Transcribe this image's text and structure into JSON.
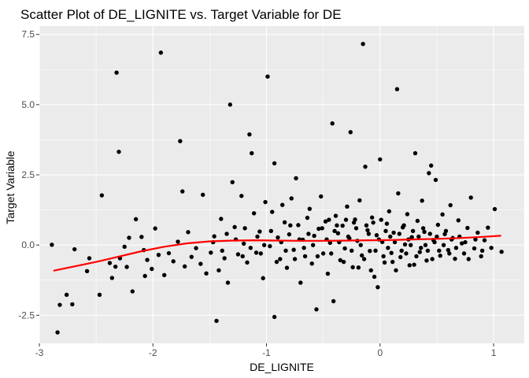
{
  "chart_data": {
    "type": "scatter",
    "title": "Scatter Plot of DE_LIGNITE vs. Target Variable for DE",
    "xlabel": "DE_LIGNITE",
    "ylabel": "Target Variable",
    "xlim": [
      -3.0,
      1.27
    ],
    "ylim": [
      -3.5,
      7.8
    ],
    "xticks": [
      {
        "value": -3,
        "label": "-3"
      },
      {
        "value": -2,
        "label": "-2"
      },
      {
        "value": -1,
        "label": "-1"
      },
      {
        "value": 0,
        "label": "0"
      },
      {
        "value": 1,
        "label": "1"
      }
    ],
    "yticks": [
      {
        "value": -2.5,
        "label": "-2.5"
      },
      {
        "value": 0.0,
        "label": "0.0"
      },
      {
        "value": 2.5,
        "label": "2.5"
      },
      {
        "value": 5.0,
        "label": "5.0"
      },
      {
        "value": 7.5,
        "label": "7.5"
      }
    ],
    "grid": true,
    "background": "#ebebeb",
    "point_color": "#000000",
    "trend_color": "#ff0000",
    "points": [
      [
        -2.89,
        0.01
      ],
      [
        -2.84,
        -3.11
      ],
      [
        -2.82,
        -2.13
      ],
      [
        -2.76,
        -1.77
      ],
      [
        -2.71,
        -2.11
      ],
      [
        -2.69,
        -0.15
      ],
      [
        -2.58,
        -0.93
      ],
      [
        -2.56,
        -0.47
      ],
      [
        -2.47,
        -1.77
      ],
      [
        -2.45,
        1.77
      ],
      [
        -2.38,
        -0.64
      ],
      [
        -2.36,
        -1.17
      ],
      [
        -2.33,
        -0.77
      ],
      [
        -2.32,
        6.14
      ],
      [
        -2.3,
        3.32
      ],
      [
        -2.29,
        -0.47
      ],
      [
        -2.25,
        -0.06
      ],
      [
        -2.23,
        -0.78
      ],
      [
        -2.21,
        0.26
      ],
      [
        -2.18,
        -1.65
      ],
      [
        -2.15,
        0.92
      ],
      [
        -2.1,
        0.29
      ],
      [
        -2.08,
        -0.18
      ],
      [
        -2.07,
        -1.1
      ],
      [
        -2.05,
        -0.53
      ],
      [
        -2.01,
        -0.85
      ],
      [
        -1.98,
        0.59
      ],
      [
        -1.95,
        -0.35
      ],
      [
        -1.93,
        6.85
      ],
      [
        -1.9,
        -1.07
      ],
      [
        -1.86,
        -0.29
      ],
      [
        -1.82,
        -0.58
      ],
      [
        -1.78,
        0.12
      ],
      [
        -1.76,
        3.7
      ],
      [
        -1.74,
        1.91
      ],
      [
        -1.72,
        -0.76
      ],
      [
        -1.69,
        0.46
      ],
      [
        -1.66,
        -0.42
      ],
      [
        -1.62,
        -0.11
      ],
      [
        -1.58,
        -0.67
      ],
      [
        -1.56,
        1.79
      ],
      [
        -1.53,
        -1.01
      ],
      [
        -1.49,
        -0.27
      ],
      [
        -1.46,
        0.31
      ],
      [
        -1.44,
        -2.7
      ],
      [
        -1.42,
        -0.9
      ],
      [
        -1.4,
        0.93
      ],
      [
        -1.37,
        -0.47
      ],
      [
        -1.34,
        -1.34
      ],
      [
        -1.32,
        5.0
      ],
      [
        -1.3,
        2.24
      ],
      [
        -1.28,
        0.64
      ],
      [
        -1.25,
        -0.33
      ],
      [
        -1.22,
        1.75
      ],
      [
        -1.2,
        0.05
      ],
      [
        -1.17,
        -0.62
      ],
      [
        -1.15,
        3.94
      ],
      [
        -1.13,
        3.27
      ],
      [
        -1.11,
        1.13
      ],
      [
        -1.09,
        -0.27
      ],
      [
        -1.06,
        0.48
      ],
      [
        -1.03,
        -1.18
      ],
      [
        -1.01,
        1.53
      ],
      [
        -0.99,
        6.0
      ],
      [
        -0.97,
        -0.04
      ],
      [
        -0.95,
        1.18
      ],
      [
        -0.93,
        2.91
      ],
      [
        -0.93,
        -2.56
      ],
      [
        -0.9,
        0.27
      ],
      [
        -0.88,
        -0.5
      ],
      [
        -0.86,
        1.43
      ],
      [
        -0.84,
        0.81
      ],
      [
        -0.82,
        -0.81
      ],
      [
        -0.8,
        0.38
      ],
      [
        -0.78,
        1.66
      ],
      [
        -0.76,
        -0.17
      ],
      [
        -0.74,
        2.38
      ],
      [
        -0.72,
        0.71
      ],
      [
        -0.7,
        -1.34
      ],
      [
        -0.68,
        0.19
      ],
      [
        -0.66,
        -0.4
      ],
      [
        -0.64,
        0.97
      ],
      [
        -0.62,
        1.29
      ],
      [
        -0.6,
        -0.66
      ],
      [
        -0.58,
        0.33
      ],
      [
        -0.56,
        -2.29
      ],
      [
        -0.54,
        0.58
      ],
      [
        -0.52,
        1.73
      ],
      [
        -0.5,
        -0.3
      ],
      [
        -0.48,
        0.84
      ],
      [
        -0.46,
        -1.02
      ],
      [
        -0.44,
        0.08
      ],
      [
        -0.42,
        4.33
      ],
      [
        -0.41,
        -2.0
      ],
      [
        -0.39,
        1.04
      ],
      [
        -0.37,
        0.42
      ],
      [
        -0.35,
        -0.54
      ],
      [
        -0.33,
        0.69
      ],
      [
        -0.31,
        -0.12
      ],
      [
        -0.29,
        1.37
      ],
      [
        -0.27,
        0.24
      ],
      [
        -0.26,
        4.02
      ],
      [
        -0.24,
        -0.79
      ],
      [
        -0.22,
        0.91
      ],
      [
        -0.2,
        0.15
      ],
      [
        -0.18,
        1.59
      ],
      [
        -0.16,
        -0.37
      ],
      [
        -0.15,
        7.16
      ],
      [
        -0.13,
        2.79
      ],
      [
        -0.11,
        0.53
      ],
      [
        -0.09,
        -0.21
      ],
      [
        -0.07,
        0.98
      ],
      [
        -0.05,
        -1.13
      ],
      [
        -0.03,
        0.35
      ],
      [
        -0.02,
        -1.5
      ],
      [
        0.0,
        3.05
      ],
      [
        0.02,
        0.11
      ],
      [
        0.04,
        -0.62
      ],
      [
        0.06,
        0.76
      ],
      [
        0.08,
        1.2
      ],
      [
        0.1,
        -0.28
      ],
      [
        0.12,
        0.44
      ],
      [
        0.15,
        5.55
      ],
      [
        0.16,
        1.84
      ],
      [
        0.18,
        -0.43
      ],
      [
        0.2,
        0.63
      ],
      [
        0.22,
        0.02
      ],
      [
        0.24,
        1.1
      ],
      [
        0.26,
        -0.72
      ],
      [
        0.28,
        0.28
      ],
      [
        0.31,
        3.27
      ],
      [
        0.33,
        0.86
      ],
      [
        0.35,
        -0.25
      ],
      [
        0.37,
        1.58
      ],
      [
        0.39,
        0.47
      ],
      [
        0.41,
        -0.55
      ],
      [
        0.43,
        2.56
      ],
      [
        0.45,
        2.83
      ],
      [
        0.47,
        0.18
      ],
      [
        0.49,
        2.32
      ],
      [
        0.51,
        0.72
      ],
      [
        0.53,
        -0.38
      ],
      [
        0.55,
        1.09
      ],
      [
        0.57,
        0.39
      ],
      [
        0.6,
        -0.18
      ],
      [
        0.62,
        1.42
      ],
      [
        0.64,
        0.25
      ],
      [
        0.66,
        -0.49
      ],
      [
        0.69,
        0.88
      ],
      [
        0.72,
        0.06
      ],
      [
        0.74,
        -0.3
      ],
      [
        0.77,
        0.61
      ],
      [
        0.8,
        1.69
      ],
      [
        0.83,
        -0.12
      ],
      [
        0.86,
        0.44
      ],
      [
        0.89,
        -0.4
      ],
      [
        0.92,
        0.17
      ],
      [
        0.95,
        0.62
      ],
      [
        0.98,
        -0.1
      ],
      [
        1.01,
        1.28
      ],
      [
        1.07,
        -0.24
      ],
      [
        -1.47,
        0.1
      ],
      [
        -1.39,
        -0.2
      ],
      [
        -1.35,
        0.4
      ],
      [
        -1.27,
        0.2
      ],
      [
        -1.21,
        -0.4
      ],
      [
        -1.19,
        0.6
      ],
      [
        -1.14,
        -0.1
      ],
      [
        -1.08,
        0.3
      ],
      [
        -1.05,
        -0.3
      ],
      [
        -1.02,
        0.0
      ],
      [
        -0.96,
        0.5
      ],
      [
        -0.91,
        -0.6
      ],
      [
        -0.87,
        0.1
      ],
      [
        -0.83,
        -0.2
      ],
      [
        -0.79,
        0.7
      ],
      [
        -0.75,
        -0.5
      ],
      [
        -0.71,
        0.2
      ],
      [
        -0.67,
        -0.1
      ],
      [
        -0.63,
        0.4
      ],
      [
        -0.59,
        0.0
      ],
      [
        -0.55,
        -0.4
      ],
      [
        -0.51,
        0.6
      ],
      [
        -0.47,
        0.2
      ],
      [
        -0.43,
        -0.3
      ],
      [
        -0.4,
        0.5
      ],
      [
        -0.36,
        0.1
      ],
      [
        -0.32,
        -0.6
      ],
      [
        -0.28,
        0.3
      ],
      [
        -0.25,
        -0.2
      ],
      [
        -0.21,
        0.6
      ],
      [
        -0.17,
        0.0
      ],
      [
        -0.14,
        -0.5
      ],
      [
        -0.1,
        0.4
      ],
      [
        -0.06,
        0.8
      ],
      [
        -0.04,
        -0.2
      ],
      [
        -0.01,
        0.2
      ],
      [
        0.03,
        -0.4
      ],
      [
        0.05,
        0.5
      ],
      [
        0.07,
        -0.1
      ],
      [
        0.09,
        0.3
      ],
      [
        0.11,
        -0.6
      ],
      [
        0.13,
        0.1
      ],
      [
        0.17,
        0.4
      ],
      [
        0.19,
        -0.2
      ],
      [
        0.21,
        0.7
      ],
      [
        0.23,
        -0.3
      ],
      [
        0.25,
        0.2
      ],
      [
        0.27,
        0.0
      ],
      [
        0.29,
        0.5
      ],
      [
        0.32,
        -0.4
      ],
      [
        0.34,
        0.3
      ],
      [
        0.36,
        -0.1
      ],
      [
        0.38,
        0.6
      ],
      [
        0.4,
        0.0
      ],
      [
        0.42,
        -0.2
      ],
      [
        0.44,
        0.4
      ],
      [
        0.46,
        -0.5
      ],
      [
        0.48,
        0.1
      ],
      [
        0.5,
        0.3
      ],
      [
        0.52,
        -0.2
      ],
      [
        0.56,
        0.0
      ],
      [
        0.58,
        0.5
      ],
      [
        0.61,
        -0.3
      ],
      [
        0.63,
        0.2
      ],
      [
        0.67,
        -0.1
      ],
      [
        0.7,
        0.3
      ],
      [
        0.75,
        0.1
      ],
      [
        0.78,
        -0.5
      ],
      [
        0.84,
        0.2
      ],
      [
        0.9,
        -0.2
      ],
      [
        -0.45,
        0.9
      ],
      [
        -0.38,
        0.7
      ],
      [
        -0.3,
        0.9
      ],
      [
        -0.23,
        0.8
      ],
      [
        -0.19,
        -0.8
      ],
      [
        -0.12,
        0.7
      ],
      [
        -0.08,
        -0.9
      ],
      [
        0.01,
        0.9
      ],
      [
        0.14,
        -0.9
      ],
      [
        0.3,
        -0.7
      ]
    ],
    "trend": [
      [
        -2.87,
        -0.91
      ],
      [
        -2.7,
        -0.77
      ],
      [
        -2.5,
        -0.6
      ],
      [
        -2.3,
        -0.41
      ],
      [
        -2.1,
        -0.22
      ],
      [
        -1.9,
        -0.06
      ],
      [
        -1.7,
        0.06
      ],
      [
        -1.5,
        0.13
      ],
      [
        -1.3,
        0.16
      ],
      [
        -1.1,
        0.17
      ],
      [
        -0.9,
        0.16
      ],
      [
        -0.7,
        0.15
      ],
      [
        -0.5,
        0.15
      ],
      [
        -0.3,
        0.16
      ],
      [
        -0.1,
        0.17
      ],
      [
        0.1,
        0.18
      ],
      [
        0.3,
        0.2
      ],
      [
        0.5,
        0.22
      ],
      [
        0.7,
        0.25
      ],
      [
        0.9,
        0.29
      ],
      [
        1.06,
        0.33
      ]
    ]
  }
}
